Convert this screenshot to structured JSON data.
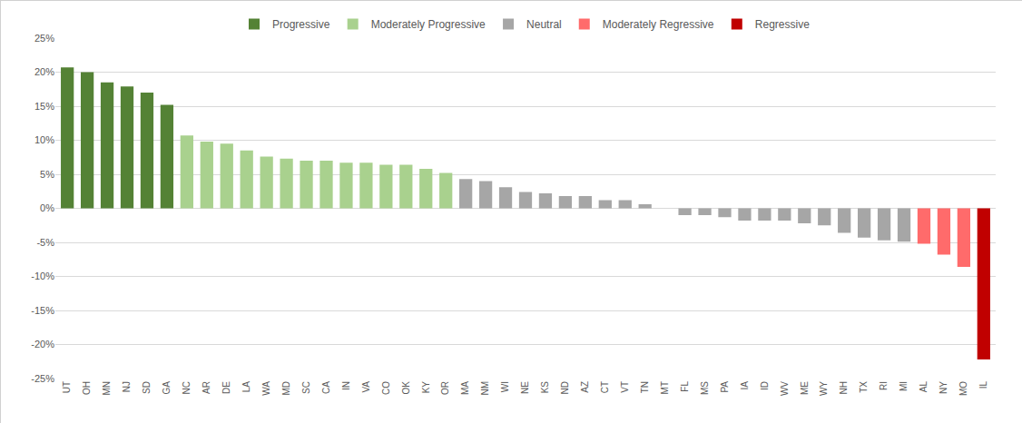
{
  "chart_data": {
    "type": "bar",
    "categories": [
      "UT",
      "OH",
      "MN",
      "NJ",
      "SD",
      "GA",
      "NC",
      "AR",
      "DE",
      "LA",
      "WA",
      "MD",
      "SC",
      "CA",
      "IN",
      "VA",
      "CO",
      "OK",
      "KY",
      "OR",
      "MA",
      "NM",
      "WI",
      "NE",
      "KS",
      "ND",
      "AZ",
      "CT",
      "VT",
      "TN",
      "MT",
      "FL",
      "MS",
      "PA",
      "IA",
      "ID",
      "WV",
      "ME",
      "WY",
      "NH",
      "TX",
      "RI",
      "MI",
      "AL",
      "NY",
      "MO",
      "IL"
    ],
    "series": [
      {
        "name": "Progressive",
        "color": "#548235",
        "values": [
          20.7,
          20.0,
          18.5,
          17.9,
          17.0,
          15.2,
          null,
          null,
          null,
          null,
          null,
          null,
          null,
          null,
          null,
          null,
          null,
          null,
          null,
          null,
          null,
          null,
          null,
          null,
          null,
          null,
          null,
          null,
          null,
          null,
          null,
          null,
          null,
          null,
          null,
          null,
          null,
          null,
          null,
          null,
          null,
          null,
          null,
          null,
          null,
          null,
          null
        ]
      },
      {
        "name": "Moderately Progressive",
        "color": "#a9d18e",
        "values": [
          null,
          null,
          null,
          null,
          null,
          null,
          10.7,
          9.8,
          9.5,
          8.5,
          7.6,
          7.3,
          7.0,
          7.0,
          6.7,
          6.7,
          6.4,
          6.4,
          5.8,
          5.2,
          null,
          null,
          null,
          null,
          null,
          null,
          null,
          null,
          null,
          null,
          null,
          null,
          null,
          null,
          null,
          null,
          null,
          null,
          null,
          null,
          null,
          null,
          null,
          null,
          null,
          null,
          null
        ]
      },
      {
        "name": "Neutral",
        "color": "#a6a6a6",
        "values": [
          null,
          null,
          null,
          null,
          null,
          null,
          null,
          null,
          null,
          null,
          null,
          null,
          null,
          null,
          null,
          null,
          null,
          null,
          null,
          null,
          4.3,
          4.0,
          3.1,
          2.4,
          2.2,
          1.8,
          1.8,
          1.2,
          1.2,
          0.6,
          0,
          -1.0,
          -1.0,
          -1.3,
          -1.8,
          -1.8,
          -1.8,
          -2.2,
          -2.5,
          -3.6,
          -4.3,
          -4.7,
          -4.9,
          null,
          null,
          null,
          null
        ]
      },
      {
        "name": "Moderately Regressive",
        "color": "#ff6b6b",
        "values": [
          null,
          null,
          null,
          null,
          null,
          null,
          null,
          null,
          null,
          null,
          null,
          null,
          null,
          null,
          null,
          null,
          null,
          null,
          null,
          null,
          null,
          null,
          null,
          null,
          null,
          null,
          null,
          null,
          null,
          null,
          null,
          null,
          null,
          null,
          null,
          null,
          null,
          null,
          null,
          null,
          null,
          null,
          null,
          -5.2,
          -6.8,
          -8.6,
          null
        ]
      },
      {
        "name": "Regressive",
        "color": "#c00000",
        "values": [
          null,
          null,
          null,
          null,
          null,
          null,
          null,
          null,
          null,
          null,
          null,
          null,
          null,
          null,
          null,
          null,
          null,
          null,
          null,
          null,
          null,
          null,
          null,
          null,
          null,
          null,
          null,
          null,
          null,
          null,
          null,
          null,
          null,
          null,
          null,
          null,
          null,
          null,
          null,
          null,
          null,
          null,
          null,
          null,
          null,
          null,
          -22.2
        ]
      }
    ],
    "ylim": [
      -25,
      25
    ],
    "yticks": [
      {
        "value": -25,
        "label": "-25%"
      },
      {
        "value": -20,
        "label": "-20%"
      },
      {
        "value": -15,
        "label": "-15%"
      },
      {
        "value": -10,
        "label": "-10%"
      },
      {
        "value": -5,
        "label": "-5%"
      },
      {
        "value": 0,
        "label": "0%"
      },
      {
        "value": 5,
        "label": "5%"
      },
      {
        "value": 10,
        "label": "10%"
      },
      {
        "value": 15,
        "label": "15%"
      },
      {
        "value": 20,
        "label": "20%"
      },
      {
        "value": 25,
        "label": "25%"
      }
    ],
    "grid": true,
    "legend": "top"
  }
}
